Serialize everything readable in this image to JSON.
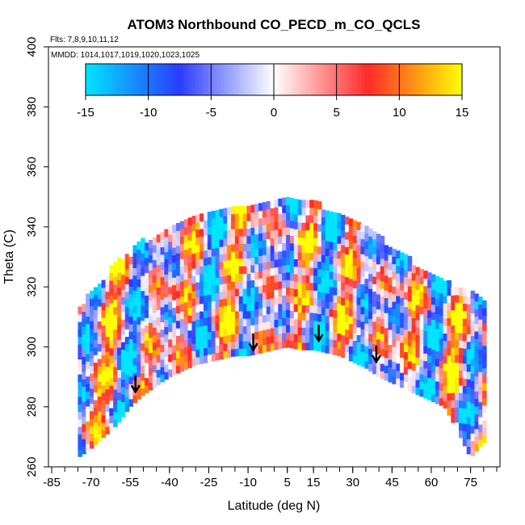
{
  "chart_data": {
    "type": "heatmap",
    "title": "ATOM3 Northbound CO_PECD_m_CO_QCLS",
    "subtitle_flights": "Flts: 7,8,9,10,11,12",
    "subtitle_dates": "MMDD: 1014,1017,1019,1020,1023,1025",
    "xlabel": "Latitude (deg N)",
    "ylabel": "Theta (C)",
    "xlim": [
      -85,
      85
    ],
    "ylim": [
      260,
      400
    ],
    "x_ticks": [
      -85,
      -70,
      -55,
      -40,
      -25,
      -10,
      5,
      15,
      30,
      45,
      60,
      75
    ],
    "x_tick_labels": [
      "-85",
      "-70",
      "-55",
      "-40",
      "-25",
      "-10",
      "5",
      "15",
      "30",
      "45",
      "60",
      "75"
    ],
    "y_ticks": [
      260,
      280,
      300,
      320,
      340,
      360,
      380,
      400
    ],
    "y_tick_labels": [
      "260",
      "280",
      "300",
      "320",
      "340",
      "360",
      "380",
      "400"
    ],
    "colorbar": {
      "min": -15,
      "max": 15,
      "ticks": [
        -15,
        -10,
        -5,
        0,
        5,
        10,
        15
      ],
      "tick_labels": [
        "-15",
        "-10",
        "-5",
        "0",
        "5",
        "10",
        "15"
      ],
      "colors": [
        "#00e5ff",
        "#2a3cff",
        "#ffffff",
        "#ff2a2a",
        "#ffff00"
      ]
    },
    "coverage_top": [
      [
        -75,
        312
      ],
      [
        -70,
        317
      ],
      [
        -65,
        322
      ],
      [
        -60,
        327
      ],
      [
        -55,
        331
      ],
      [
        -50,
        334
      ],
      [
        -45,
        337
      ],
      [
        -40,
        339
      ],
      [
        -35,
        340
      ],
      [
        -30,
        342
      ],
      [
        -25,
        343
      ],
      [
        -20,
        345
      ],
      [
        -15,
        346
      ],
      [
        -10,
        347
      ],
      [
        -5,
        348
      ],
      [
        0,
        349
      ],
      [
        5,
        350
      ],
      [
        10,
        349
      ],
      [
        15,
        347
      ],
      [
        20,
        345
      ],
      [
        25,
        344
      ],
      [
        30,
        342
      ],
      [
        35,
        339
      ],
      [
        40,
        336
      ],
      [
        45,
        332
      ],
      [
        50,
        329
      ],
      [
        55,
        326
      ],
      [
        60,
        323
      ],
      [
        65,
        321
      ],
      [
        70,
        319
      ],
      [
        75,
        318
      ],
      [
        80,
        315
      ]
    ],
    "coverage_bottom": [
      [
        -75,
        263
      ],
      [
        -70,
        266
      ],
      [
        -65,
        270
      ],
      [
        -60,
        274
      ],
      [
        -55,
        280
      ],
      [
        -50,
        284
      ],
      [
        -45,
        287
      ],
      [
        -40,
        290
      ],
      [
        -35,
        292
      ],
      [
        -30,
        294
      ],
      [
        -25,
        295
      ],
      [
        -20,
        296
      ],
      [
        -15,
        297
      ],
      [
        -10,
        297
      ],
      [
        -5,
        298
      ],
      [
        0,
        299
      ],
      [
        5,
        300
      ],
      [
        10,
        299
      ],
      [
        15,
        299
      ],
      [
        20,
        298
      ],
      [
        25,
        297
      ],
      [
        30,
        295
      ],
      [
        35,
        293
      ],
      [
        40,
        290
      ],
      [
        45,
        288
      ],
      [
        50,
        286
      ],
      [
        55,
        284
      ],
      [
        60,
        282
      ],
      [
        65,
        280
      ],
      [
        70,
        272
      ],
      [
        75,
        263
      ],
      [
        80,
        268
      ]
    ],
    "arrows": [
      {
        "lat": -53,
        "theta": 285
      },
      {
        "lat": -8,
        "theta": 299
      },
      {
        "lat": 17,
        "theta": 302
      },
      {
        "lat": 39,
        "theta": 295
      }
    ]
  }
}
